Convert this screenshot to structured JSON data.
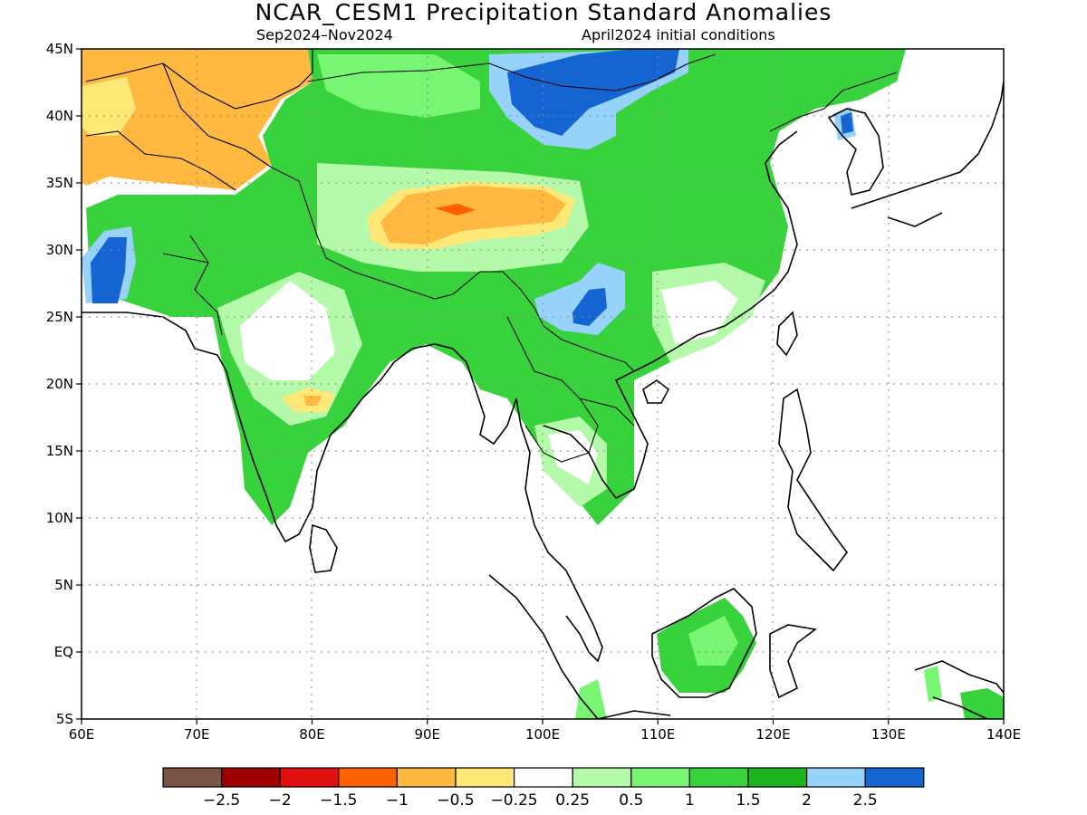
{
  "title": "NCAR_CESM1 Precipitation Standard Anomalies",
  "period": "Sep2024–Nov2024",
  "init": "April2024 initial conditions",
  "map": {
    "lon_range": [
      60,
      140
    ],
    "lat_range": [
      -5,
      45
    ],
    "x_ticks": [
      "60E",
      "70E",
      "80E",
      "90E",
      "100E",
      "110E",
      "120E",
      "130E",
      "140E"
    ],
    "y_ticks": [
      "45N",
      "40N",
      "35N",
      "30N",
      "25N",
      "20N",
      "15N",
      "10N",
      "5N",
      "EQ",
      "5S"
    ]
  },
  "colorbar": {
    "colors": [
      "#7a5246",
      "#a00000",
      "#e01010",
      "#ff6000",
      "#ffb840",
      "#ffe878",
      "#ffffff",
      "#b4faaa",
      "#78f573",
      "#37d23c",
      "#1eb41e",
      "#96d2fa",
      "#1464d2"
    ],
    "labels": [
      "−2.5",
      "−2",
      "−1.5",
      "−1",
      "−0.5",
      "−0.25",
      "0.25",
      "0.5",
      "1",
      "1.5",
      "2",
      "2.5"
    ]
  },
  "colors": {
    "strong_wet": "#1464d2",
    "wet": "#96d2fa",
    "green_dark": "#1eb41e",
    "green": "#37d23c",
    "green_light": "#78f573",
    "green_pale": "#b4faaa",
    "dry_light": "#ffe878",
    "dry": "#ffb840",
    "dry_strong": "#ff6000"
  }
}
